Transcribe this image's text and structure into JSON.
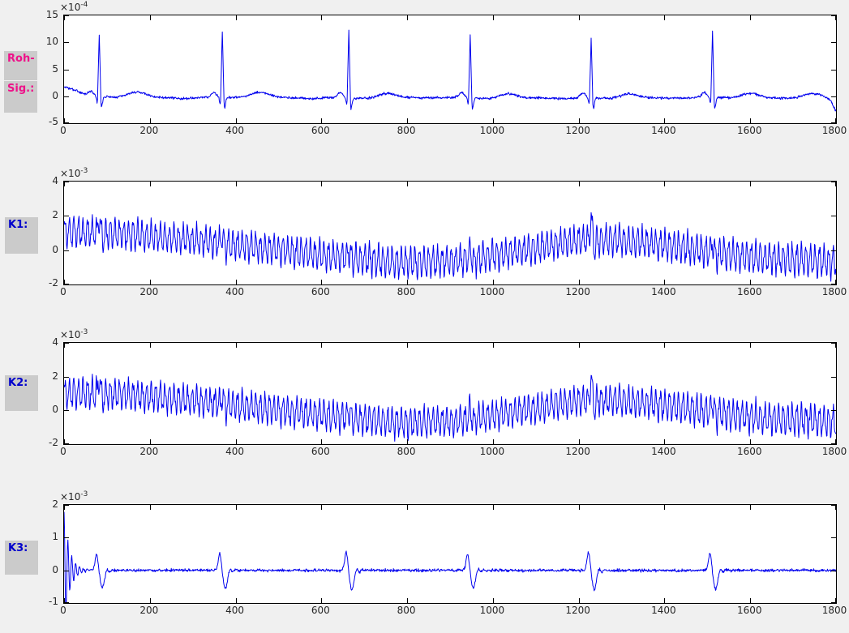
{
  "colors": {
    "figure_bg": "#f0f0f0",
    "axes_bg": "#ffffff",
    "axis": "#000000",
    "tick_label": "#262626",
    "label_box_bg": "#cbcbcb",
    "raw_label_color": "#ee1289",
    "channel_label_color": "#0000cc",
    "line_blue": "#0000ee"
  },
  "chart_data": [
    {
      "id": "roh_sig",
      "type": "line",
      "title": "",
      "xlabel": "",
      "ylabel": "",
      "side_label": {
        "lines": [
          "Roh-",
          "Sig.:"
        ],
        "color": "#ee1289"
      },
      "exponent_base": "×10",
      "exponent_power": "-4",
      "xlim": [
        0,
        1800
      ],
      "ylim": [
        -5,
        15
      ],
      "xticks": [
        0,
        200,
        400,
        600,
        800,
        1000,
        1200,
        1400,
        1600,
        1800
      ],
      "yticks": [
        -5,
        0,
        5,
        10,
        15
      ],
      "grid": false,
      "legend": null,
      "line_color": "#0000ee",
      "signal": {
        "kind": "ecg",
        "n": 1800,
        "seed": 3,
        "noise": 0.11,
        "beats": [
          {
            "x": 82,
            "r": 11.5
          },
          {
            "x": 369,
            "r": 12.3
          },
          {
            "x": 664,
            "r": 12.5
          },
          {
            "x": 947,
            "r": 11.8
          },
          {
            "x": 1229,
            "r": 11.0
          },
          {
            "x": 1512,
            "r": 12.4
          }
        ],
        "p_amp": 0.85,
        "q_amp": -1.2,
        "s_amp": -2.0,
        "t_amp": 0.95,
        "baseline_nodes": [
          [
            0,
            1.8
          ],
          [
            35,
            0.8
          ],
          [
            60,
            0.1
          ],
          [
            110,
            -0.15
          ],
          [
            200,
            -0.2
          ],
          [
            290,
            -0.4
          ],
          [
            345,
            -0.15
          ],
          [
            420,
            -0.25
          ],
          [
            500,
            -0.2
          ],
          [
            575,
            -0.45
          ],
          [
            635,
            -0.2
          ],
          [
            720,
            -0.5
          ],
          [
            800,
            -0.25
          ],
          [
            880,
            -0.3
          ],
          [
            925,
            -0.15
          ],
          [
            1010,
            -0.55
          ],
          [
            1090,
            -0.3
          ],
          [
            1175,
            -0.45
          ],
          [
            1215,
            -0.2
          ],
          [
            1300,
            -0.55
          ],
          [
            1380,
            -0.3
          ],
          [
            1450,
            -0.35
          ],
          [
            1495,
            -0.15
          ],
          [
            1590,
            -0.45
          ],
          [
            1660,
            -0.35
          ],
          [
            1705,
            -0.3
          ],
          [
            1740,
            0.55
          ],
          [
            1765,
            0.3
          ],
          [
            1788,
            -0.8
          ],
          [
            1800,
            -2.9
          ]
        ]
      }
    },
    {
      "id": "k1",
      "type": "line",
      "title": "",
      "xlabel": "",
      "ylabel": "",
      "side_label": {
        "lines": [
          "K1:"
        ],
        "color": "#0000cc"
      },
      "exponent_base": "×10",
      "exponent_power": "-3",
      "xlim": [
        0,
        1800
      ],
      "ylim": [
        -2,
        4
      ],
      "xticks": [
        0,
        200,
        400,
        600,
        800,
        1000,
        1200,
        1400,
        1600,
        1800
      ],
      "yticks": [
        -2,
        0,
        2,
        4
      ],
      "grid": false,
      "legend": null,
      "line_color": "#0000ee",
      "signal": {
        "kind": "osc",
        "n": 1800,
        "seed": 7,
        "noise": 0.09,
        "period": 10.6,
        "amp_nodes": [
          [
            0,
            0.95
          ],
          [
            300,
            0.88
          ],
          [
            700,
            0.95
          ],
          [
            1100,
            0.9
          ],
          [
            1500,
            0.95
          ],
          [
            1800,
            1.0
          ]
        ],
        "baseline_nodes": [
          [
            0,
            1.05
          ],
          [
            120,
            0.95
          ],
          [
            260,
            0.68
          ],
          [
            400,
            0.32
          ],
          [
            540,
            -0.1
          ],
          [
            680,
            -0.5
          ],
          [
            790,
            -0.72
          ],
          [
            900,
            -0.66
          ],
          [
            1000,
            -0.32
          ],
          [
            1100,
            0.12
          ],
          [
            1200,
            0.58
          ],
          [
            1290,
            0.6
          ],
          [
            1380,
            0.36
          ],
          [
            1470,
            0.05
          ],
          [
            1560,
            -0.28
          ],
          [
            1650,
            -0.5
          ],
          [
            1740,
            -0.6
          ],
          [
            1800,
            -0.72
          ]
        ],
        "beats": [
          {
            "x": 82,
            "a": 1.0
          },
          {
            "x": 369,
            "a": 0.45
          },
          {
            "x": 664,
            "a": 0.5
          },
          {
            "x": 947,
            "a": 0.6
          },
          {
            "x": 1229,
            "a": 1.4
          },
          {
            "x": 1512,
            "a": 0.65
          }
        ]
      }
    },
    {
      "id": "k2",
      "type": "line",
      "title": "",
      "xlabel": "",
      "ylabel": "",
      "side_label": {
        "lines": [
          "K2:"
        ],
        "color": "#0000cc"
      },
      "exponent_base": "×10",
      "exponent_power": "-3",
      "xlim": [
        0,
        1800
      ],
      "ylim": [
        -2,
        4
      ],
      "xticks": [
        0,
        200,
        400,
        600,
        800,
        1000,
        1200,
        1400,
        1600,
        1800
      ],
      "yticks": [
        -2,
        0,
        2,
        4
      ],
      "grid": false,
      "legend": null,
      "line_color": "#0000ee",
      "signal": {
        "kind": "osc",
        "n": 1800,
        "seed": 13,
        "noise": 0.09,
        "period": 10.6,
        "amp_nodes": [
          [
            0,
            0.95
          ],
          [
            300,
            0.9
          ],
          [
            700,
            0.95
          ],
          [
            1100,
            0.9
          ],
          [
            1500,
            0.95
          ],
          [
            1800,
            1.0
          ]
        ],
        "baseline_nodes": [
          [
            0,
            1.05
          ],
          [
            120,
            0.95
          ],
          [
            260,
            0.68
          ],
          [
            400,
            0.32
          ],
          [
            540,
            -0.1
          ],
          [
            680,
            -0.5
          ],
          [
            790,
            -0.72
          ],
          [
            900,
            -0.66
          ],
          [
            1000,
            -0.32
          ],
          [
            1100,
            0.12
          ],
          [
            1200,
            0.58
          ],
          [
            1290,
            0.6
          ],
          [
            1380,
            0.36
          ],
          [
            1470,
            0.05
          ],
          [
            1560,
            -0.28
          ],
          [
            1650,
            -0.5
          ],
          [
            1740,
            -0.6
          ],
          [
            1800,
            -0.72
          ]
        ],
        "beats": [
          {
            "x": 82,
            "a": 1.0
          },
          {
            "x": 369,
            "a": 0.45
          },
          {
            "x": 664,
            "a": 0.5
          },
          {
            "x": 947,
            "a": 0.6
          },
          {
            "x": 1229,
            "a": 1.4
          },
          {
            "x": 1512,
            "a": 0.65
          }
        ]
      }
    },
    {
      "id": "k3",
      "type": "line",
      "title": "",
      "xlabel": "",
      "ylabel": "",
      "side_label": {
        "lines": [
          "K3:"
        ],
        "color": "#0000cc"
      },
      "exponent_base": "×10",
      "exponent_power": "-3",
      "xlim": [
        0,
        1800
      ],
      "ylim": [
        -1,
        2
      ],
      "xticks": [
        0,
        200,
        400,
        600,
        800,
        1000,
        1200,
        1400,
        1600,
        1800
      ],
      "yticks": [
        -1,
        0,
        1,
        2
      ],
      "grid": false,
      "legend": null,
      "line_color": "#0000ee",
      "signal": {
        "kind": "ringing",
        "n": 1800,
        "seed": 21,
        "noise": 0.022,
        "initial": {
          "amp": 1.8,
          "decay": 13,
          "period": 9
        },
        "beats": [
          {
            "x": 82,
            "a": 0.5
          },
          {
            "x": 369,
            "a": 0.52
          },
          {
            "x": 664,
            "a": 0.56
          },
          {
            "x": 947,
            "a": 0.5
          },
          {
            "x": 1229,
            "a": 0.55
          },
          {
            "x": 1512,
            "a": 0.53
          }
        ]
      }
    }
  ]
}
